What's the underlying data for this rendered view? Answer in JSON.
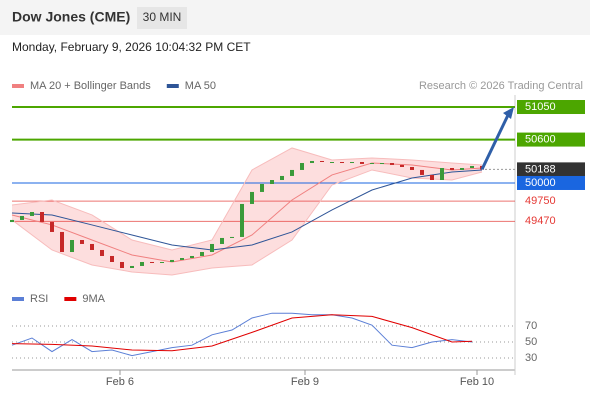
{
  "header": {
    "title": "Dow Jones (CME)",
    "interval": "30 MIN",
    "datetime": "Monday, February 9, 2026 10:04:32 PM CET",
    "credit": "Research © 2026 Trading Central"
  },
  "chart_data": [
    {
      "type": "candlestick",
      "legend": [
        {
          "name": "MA 20 + Bollinger Bands",
          "color": "#f08080"
        },
        {
          "name": "MA 50",
          "color": "#2f5597"
        }
      ],
      "xlim": [
        0,
        50.3
      ],
      "ylim": [
        48590,
        51216
      ],
      "open": [
        49460,
        49489,
        49544,
        49599,
        49461,
        49323,
        49046,
        49212,
        49157,
        49074,
        48991,
        48908,
        48825,
        48853,
        48908,
        48894,
        48908,
        48936,
        48963,
        48991,
        49046,
        49157,
        49240,
        49254,
        49710,
        49876,
        49986,
        50041,
        50097,
        50180,
        50276,
        50304,
        50290,
        50290,
        50276,
        50290,
        50263,
        50276,
        50276,
        50249,
        50221,
        50180,
        50111,
        50041,
        50207,
        50180,
        50207,
        50235
      ],
      "close": [
        49489,
        49544,
        49599,
        49461,
        49323,
        49046,
        49212,
        49157,
        49074,
        48991,
        48908,
        48825,
        48853,
        48908,
        48894,
        48908,
        48936,
        48963,
        48991,
        49046,
        49157,
        49240,
        49254,
        49710,
        49876,
        49986,
        50041,
        50097,
        50180,
        50276,
        50304,
        50290,
        50290,
        50276,
        50290,
        50263,
        50276,
        50276,
        50249,
        50221,
        50180,
        50111,
        50041,
        50207,
        50180,
        50207,
        50235,
        50188
      ],
      "up_color": "#3a9a3a",
      "down_color": "#c62828",
      "ma_x": [
        0,
        4,
        8,
        12,
        16,
        20,
        24,
        28,
        32,
        36,
        40,
        44,
        47
      ],
      "ma20": [
        49558,
        49420,
        49212,
        49005,
        48908,
        49005,
        49281,
        49765,
        50111,
        50276,
        50249,
        50180,
        50207
      ],
      "bb_upper": [
        49696,
        49765,
        49558,
        49212,
        49074,
        49212,
        50180,
        50484,
        50318,
        50346,
        50318,
        50276,
        50249
      ],
      "bb_lower": [
        49489,
        49074,
        48867,
        48770,
        48729,
        48825,
        48867,
        49212,
        49972,
        50180,
        50069,
        50041,
        50152
      ],
      "ma50": [
        49585,
        49558,
        49420,
        49281,
        49143,
        49074,
        49143,
        49323,
        49627,
        49903,
        50069,
        50152,
        50180
      ],
      "band_color": "#fdd8d8",
      "levels": [
        {
          "value": 51050,
          "color": "#4ca600",
          "style": "box"
        },
        {
          "value": 50600,
          "color": "#4ca600",
          "style": "box"
        },
        {
          "value": 50188,
          "color": "#333333",
          "style": "current"
        },
        {
          "value": 50000,
          "color": "#1a66e0",
          "style": "box"
        },
        {
          "value": 49750,
          "color": "#e53935",
          "style": "text"
        },
        {
          "value": 49470,
          "color": "#e53935",
          "style": "text"
        }
      ]
    },
    {
      "type": "line",
      "legend": [
        {
          "name": "RSI",
          "color": "#5b7fd6"
        },
        {
          "name": "9MA",
          "color": "#e00000"
        }
      ],
      "xlim": [
        0,
        50.3
      ],
      "ylim": [
        15,
        90
      ],
      "yticks": [
        30,
        50,
        70
      ],
      "grid": true,
      "xticks": [
        {
          "value": 10.8,
          "label": "Feb 6"
        },
        {
          "value": 29.3,
          "label": "Feb 9"
        },
        {
          "value": 46.5,
          "label": "Feb 10"
        }
      ],
      "series": [
        {
          "name": "RSI",
          "color": "#5b7fd6",
          "x": [
            0,
            2,
            4,
            6,
            8,
            10,
            12,
            14,
            16,
            18,
            20,
            22,
            24,
            26,
            28,
            30,
            32,
            34,
            36,
            38,
            40,
            42,
            44,
            46
          ],
          "values": [
            46,
            55,
            38,
            53,
            38,
            40,
            33,
            38,
            43,
            46,
            59,
            65,
            80,
            86,
            86,
            84,
            84,
            80,
            71,
            46,
            43,
            50,
            53,
            50
          ]
        },
        {
          "name": "9MA",
          "color": "#e00000",
          "x": [
            0,
            4,
            8,
            12,
            16,
            20,
            24,
            28,
            32,
            36,
            40,
            44,
            46
          ],
          "values": [
            48,
            47,
            45,
            40,
            39,
            45,
            62,
            80,
            84,
            82,
            68,
            50,
            51
          ]
        }
      ]
    }
  ]
}
